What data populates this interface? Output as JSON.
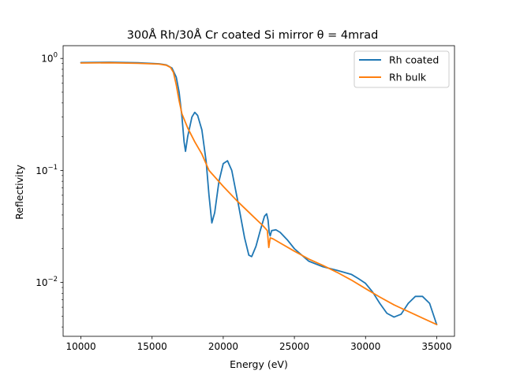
{
  "chart_data": {
    "type": "line",
    "title": "300Å Rh/30Å Cr coated Si mirror θ = 4mrad",
    "xlabel": "Energy (eV)",
    "ylabel": "Reflectivity",
    "xlim": [
      8750,
      36250
    ],
    "ylim": [
      0.0033,
      1.3
    ],
    "yscale": "log",
    "xticks": [
      10000,
      15000,
      20000,
      25000,
      30000,
      35000
    ],
    "xtick_labels": [
      "10000",
      "15000",
      "20000",
      "25000",
      "30000",
      "35000"
    ],
    "yticks": [
      0.01,
      0.1,
      1
    ],
    "ytick_labels": [
      {
        "base": "10",
        "exp": "−2"
      },
      {
        "base": "10",
        "exp": "−1"
      },
      {
        "base": "10",
        "exp": "0"
      }
    ],
    "legend_position": "top-right",
    "series": [
      {
        "name": "Rh coated",
        "color": "#1f77b4",
        "points": [
          [
            10000,
            0.92
          ],
          [
            12000,
            0.925
          ],
          [
            14000,
            0.915
          ],
          [
            15500,
            0.895
          ],
          [
            16000,
            0.875
          ],
          [
            16400,
            0.82
          ],
          [
            16700,
            0.68
          ],
          [
            16900,
            0.5
          ],
          [
            17100,
            0.3
          ],
          [
            17250,
            0.18
          ],
          [
            17350,
            0.148
          ],
          [
            17500,
            0.2
          ],
          [
            17800,
            0.3
          ],
          [
            18000,
            0.33
          ],
          [
            18200,
            0.31
          ],
          [
            18500,
            0.23
          ],
          [
            18800,
            0.12
          ],
          [
            19000,
            0.06
          ],
          [
            19200,
            0.034
          ],
          [
            19400,
            0.042
          ],
          [
            19700,
            0.08
          ],
          [
            20000,
            0.115
          ],
          [
            20300,
            0.122
          ],
          [
            20600,
            0.1
          ],
          [
            21000,
            0.055
          ],
          [
            21500,
            0.025
          ],
          [
            21800,
            0.0175
          ],
          [
            22000,
            0.017
          ],
          [
            22300,
            0.021
          ],
          [
            22600,
            0.029
          ],
          [
            22900,
            0.039
          ],
          [
            23050,
            0.041
          ],
          [
            23150,
            0.036
          ],
          [
            23230,
            0.028
          ],
          [
            23300,
            0.026
          ],
          [
            23400,
            0.029
          ],
          [
            23700,
            0.0295
          ],
          [
            24000,
            0.028
          ],
          [
            24500,
            0.024
          ],
          [
            25000,
            0.02
          ],
          [
            26000,
            0.0155
          ],
          [
            27000,
            0.0138
          ],
          [
            28000,
            0.0128
          ],
          [
            29000,
            0.0118
          ],
          [
            29500,
            0.0108
          ],
          [
            30000,
            0.0098
          ],
          [
            30500,
            0.0082
          ],
          [
            31000,
            0.0065
          ],
          [
            31500,
            0.0053
          ],
          [
            32000,
            0.0049
          ],
          [
            32500,
            0.0052
          ],
          [
            33000,
            0.0065
          ],
          [
            33500,
            0.0075
          ],
          [
            34000,
            0.0075
          ],
          [
            34500,
            0.0065
          ],
          [
            35000,
            0.0042
          ]
        ]
      },
      {
        "name": "Rh bulk",
        "color": "#ff7f0e",
        "points": [
          [
            10000,
            0.91
          ],
          [
            12000,
            0.915
          ],
          [
            14000,
            0.905
          ],
          [
            15500,
            0.89
          ],
          [
            16000,
            0.87
          ],
          [
            16300,
            0.83
          ],
          [
            16500,
            0.75
          ],
          [
            16700,
            0.58
          ],
          [
            16900,
            0.42
          ],
          [
            17100,
            0.32
          ],
          [
            17500,
            0.24
          ],
          [
            18000,
            0.18
          ],
          [
            18500,
            0.14
          ],
          [
            19000,
            0.1
          ],
          [
            20000,
            0.072
          ],
          [
            21000,
            0.053
          ],
          [
            22000,
            0.04
          ],
          [
            22800,
            0.032
          ],
          [
            23100,
            0.029
          ],
          [
            23200,
            0.0205
          ],
          [
            23300,
            0.025
          ],
          [
            23500,
            0.0245
          ],
          [
            24000,
            0.0225
          ],
          [
            25000,
            0.019
          ],
          [
            26000,
            0.0162
          ],
          [
            27000,
            0.0142
          ],
          [
            28000,
            0.0123
          ],
          [
            29000,
            0.0105
          ],
          [
            30000,
            0.0088
          ],
          [
            31000,
            0.0074
          ],
          [
            32000,
            0.0063
          ],
          [
            33000,
            0.0055
          ],
          [
            34000,
            0.0048
          ],
          [
            35000,
            0.0042
          ]
        ]
      }
    ]
  }
}
